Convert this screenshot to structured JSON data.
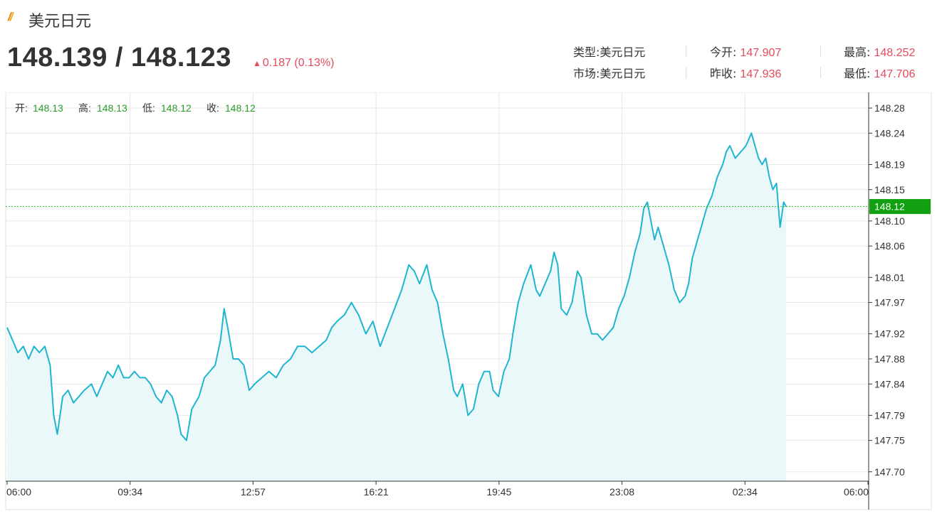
{
  "header": {
    "title": "美元日元",
    "bid_ask": "148.139 / 148.123",
    "change": "0.187 (0.13%)",
    "stats": [
      {
        "label": "类型:",
        "value": "美元日元"
      },
      {
        "label": "今开:",
        "value": "147.907"
      },
      {
        "label": "最高:",
        "value": "148.252"
      },
      {
        "label": "市场:",
        "value": "美元日元"
      },
      {
        "label": "昨收:",
        "value": "147.936"
      },
      {
        "label": "最低:",
        "value": "147.706"
      }
    ]
  },
  "ohlc": [
    {
      "label": "开:",
      "value": "148.13"
    },
    {
      "label": "高:",
      "value": "148.13"
    },
    {
      "label": "低:",
      "value": "148.12"
    },
    {
      "label": "收:",
      "value": "148.12"
    }
  ],
  "colors": {
    "line": "#1fb5cf",
    "fill": "#eaf8fa",
    "up": "#e64a5a",
    "ohlc_value": "#2a9d2a",
    "current_badge": "#11a011",
    "current_line": "#2ab32a",
    "grid": "#e7e7e7"
  },
  "chart_data": {
    "type": "area",
    "x_ticks": [
      "06:00",
      "09:34",
      "12:57",
      "16:21",
      "19:45",
      "23:08",
      "02:34",
      "06:00"
    ],
    "y_ticks": [
      "148.28",
      "148.24",
      "148.19",
      "148.15",
      "148.10",
      "148.06",
      "148.01",
      "147.97",
      "147.92",
      "147.88",
      "147.84",
      "147.79",
      "147.75",
      "147.70"
    ],
    "ylim": [
      147.685,
      148.305
    ],
    "current_value": 148.123,
    "current_label": "148.12",
    "x_unit": "hours after 06:00 open",
    "x_total": 24,
    "series": [
      {
        "values": [
          [
            0.0,
            147.93
          ],
          [
            0.15,
            147.91
          ],
          [
            0.3,
            147.89
          ],
          [
            0.45,
            147.9
          ],
          [
            0.6,
            147.88
          ],
          [
            0.75,
            147.9
          ],
          [
            0.9,
            147.89
          ],
          [
            1.05,
            147.9
          ],
          [
            1.2,
            147.87
          ],
          [
            1.3,
            147.79
          ],
          [
            1.4,
            147.76
          ],
          [
            1.55,
            147.82
          ],
          [
            1.7,
            147.83
          ],
          [
            1.85,
            147.81
          ],
          [
            2.0,
            147.82
          ],
          [
            2.15,
            147.83
          ],
          [
            2.35,
            147.84
          ],
          [
            2.5,
            147.82
          ],
          [
            2.65,
            147.84
          ],
          [
            2.8,
            147.86
          ],
          [
            2.95,
            147.85
          ],
          [
            3.1,
            147.87
          ],
          [
            3.25,
            147.85
          ],
          [
            3.4,
            147.85
          ],
          [
            3.55,
            147.86
          ],
          [
            3.7,
            147.85
          ],
          [
            3.85,
            147.85
          ],
          [
            4.0,
            147.84
          ],
          [
            4.15,
            147.82
          ],
          [
            4.3,
            147.81
          ],
          [
            4.45,
            147.83
          ],
          [
            4.6,
            147.82
          ],
          [
            4.75,
            147.79
          ],
          [
            4.85,
            147.76
          ],
          [
            5.0,
            147.75
          ],
          [
            5.15,
            147.8
          ],
          [
            5.35,
            147.82
          ],
          [
            5.5,
            147.85
          ],
          [
            5.65,
            147.86
          ],
          [
            5.8,
            147.87
          ],
          [
            5.95,
            147.91
          ],
          [
            6.05,
            147.96
          ],
          [
            6.15,
            147.93
          ],
          [
            6.3,
            147.88
          ],
          [
            6.45,
            147.88
          ],
          [
            6.6,
            147.87
          ],
          [
            6.75,
            147.83
          ],
          [
            6.9,
            147.84
          ],
          [
            7.1,
            147.85
          ],
          [
            7.3,
            147.86
          ],
          [
            7.5,
            147.85
          ],
          [
            7.7,
            147.87
          ],
          [
            7.9,
            147.88
          ],
          [
            8.1,
            147.9
          ],
          [
            8.3,
            147.9
          ],
          [
            8.5,
            147.89
          ],
          [
            8.7,
            147.9
          ],
          [
            8.9,
            147.91
          ],
          [
            9.05,
            147.93
          ],
          [
            9.2,
            147.94
          ],
          [
            9.4,
            147.95
          ],
          [
            9.6,
            147.97
          ],
          [
            9.8,
            147.95
          ],
          [
            10.0,
            147.92
          ],
          [
            10.2,
            147.94
          ],
          [
            10.4,
            147.9
          ],
          [
            10.6,
            147.93
          ],
          [
            10.8,
            147.96
          ],
          [
            11.0,
            147.99
          ],
          [
            11.2,
            148.03
          ],
          [
            11.35,
            148.02
          ],
          [
            11.5,
            148.0
          ],
          [
            11.7,
            148.03
          ],
          [
            11.85,
            147.99
          ],
          [
            12.0,
            147.97
          ],
          [
            12.15,
            147.92
          ],
          [
            12.3,
            147.88
          ],
          [
            12.45,
            147.83
          ],
          [
            12.55,
            147.82
          ],
          [
            12.7,
            147.84
          ],
          [
            12.85,
            147.79
          ],
          [
            13.0,
            147.8
          ],
          [
            13.15,
            147.84
          ],
          [
            13.3,
            147.86
          ],
          [
            13.45,
            147.86
          ],
          [
            13.55,
            147.83
          ],
          [
            13.7,
            147.82
          ],
          [
            13.85,
            147.86
          ],
          [
            14.0,
            147.88
          ],
          [
            14.1,
            147.92
          ],
          [
            14.25,
            147.97
          ],
          [
            14.4,
            148.0
          ],
          [
            14.6,
            148.03
          ],
          [
            14.75,
            147.99
          ],
          [
            14.85,
            147.98
          ],
          [
            15.0,
            148.0
          ],
          [
            15.15,
            148.02
          ],
          [
            15.25,
            148.05
          ],
          [
            15.35,
            148.03
          ],
          [
            15.45,
            147.96
          ],
          [
            15.6,
            147.95
          ],
          [
            15.75,
            147.97
          ],
          [
            15.9,
            148.02
          ],
          [
            16.0,
            148.01
          ],
          [
            16.15,
            147.95
          ],
          [
            16.3,
            147.92
          ],
          [
            16.45,
            147.92
          ],
          [
            16.6,
            147.91
          ],
          [
            16.75,
            147.92
          ],
          [
            16.9,
            147.93
          ],
          [
            17.05,
            147.96
          ],
          [
            17.2,
            147.98
          ],
          [
            17.35,
            148.01
          ],
          [
            17.5,
            148.05
          ],
          [
            17.65,
            148.08
          ],
          [
            17.75,
            148.12
          ],
          [
            17.85,
            148.13
          ],
          [
            17.95,
            148.1
          ],
          [
            18.05,
            148.07
          ],
          [
            18.15,
            148.09
          ],
          [
            18.3,
            148.06
          ],
          [
            18.45,
            148.03
          ],
          [
            18.6,
            147.99
          ],
          [
            18.75,
            147.97
          ],
          [
            18.9,
            147.98
          ],
          [
            19.0,
            148.0
          ],
          [
            19.1,
            148.04
          ],
          [
            19.25,
            148.07
          ],
          [
            19.35,
            148.09
          ],
          [
            19.5,
            148.12
          ],
          [
            19.65,
            148.14
          ],
          [
            19.8,
            148.17
          ],
          [
            19.95,
            148.19
          ],
          [
            20.05,
            148.21
          ],
          [
            20.15,
            148.22
          ],
          [
            20.3,
            148.2
          ],
          [
            20.45,
            148.21
          ],
          [
            20.6,
            148.22
          ],
          [
            20.75,
            148.24
          ],
          [
            20.85,
            148.22
          ],
          [
            20.95,
            148.2
          ],
          [
            21.05,
            148.19
          ],
          [
            21.15,
            148.2
          ],
          [
            21.25,
            148.17
          ],
          [
            21.35,
            148.15
          ],
          [
            21.45,
            148.16
          ],
          [
            21.55,
            148.09
          ],
          [
            21.65,
            148.13
          ],
          [
            21.72,
            148.123
          ]
        ]
      }
    ]
  }
}
